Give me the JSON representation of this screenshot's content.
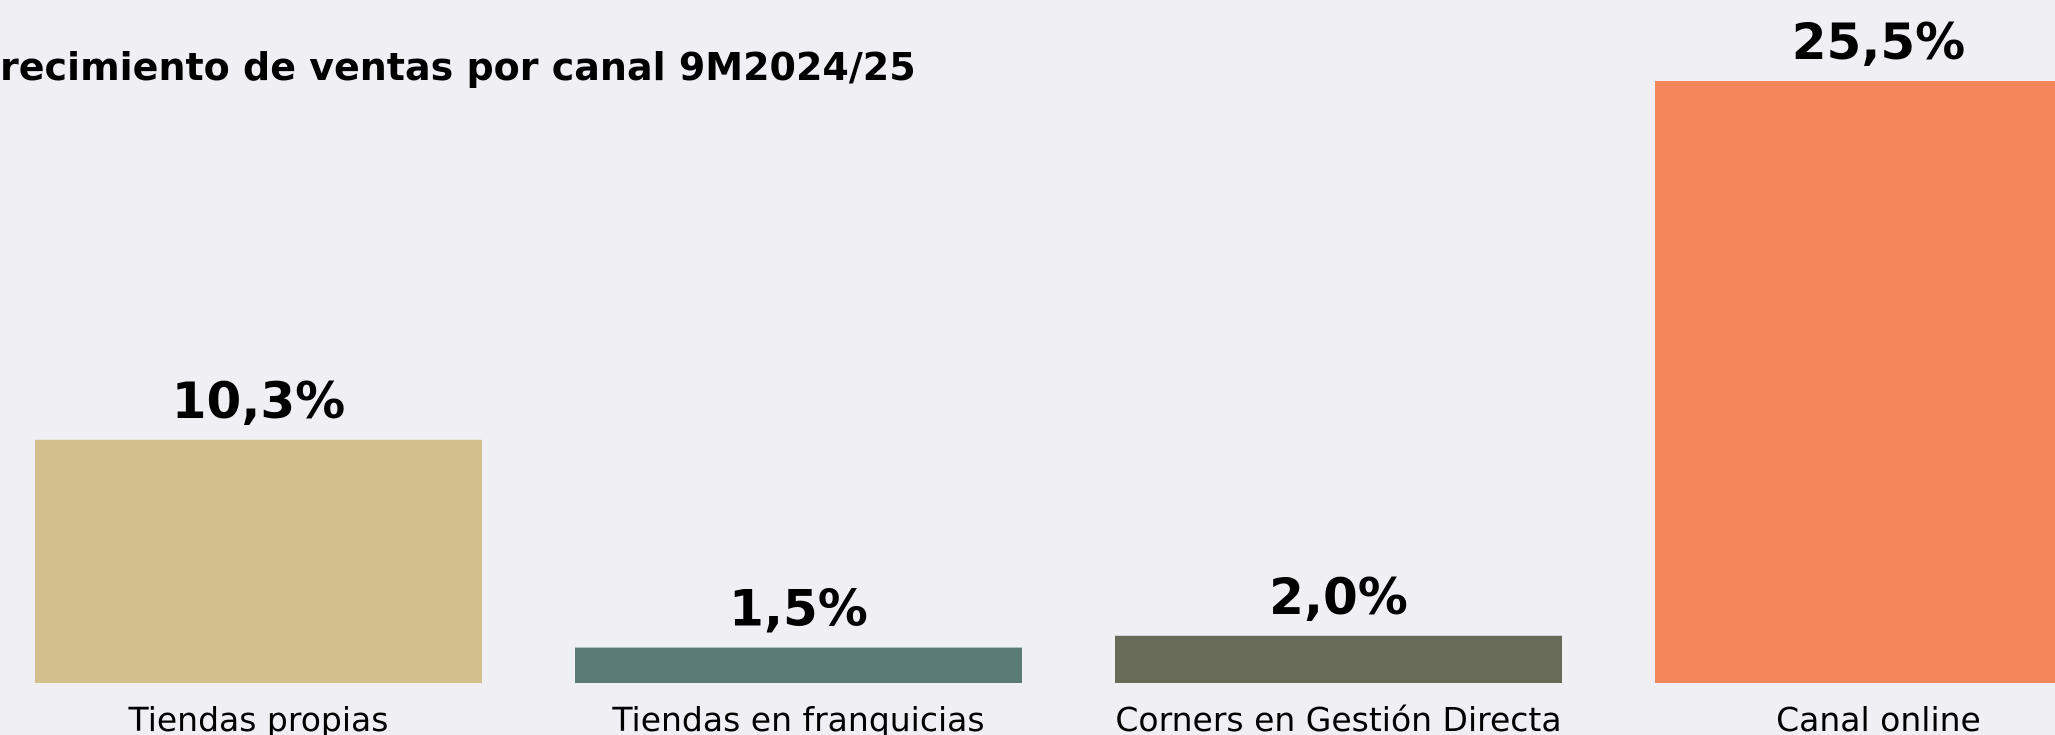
{
  "chart_data": {
    "type": "bar",
    "title": "recimiento de ventas por canal 9M2024/25",
    "categories": [
      "Tiendas propias",
      "Tiendas en franquicias",
      "Corners en Gestión Directa",
      "Canal online"
    ],
    "values": [
      10.3,
      1.5,
      2.0,
      25.5
    ],
    "value_labels": [
      "10,3%",
      "1,5%",
      "2,0%",
      "25,5%"
    ],
    "colors": [
      "#d3bf8c",
      "#5b7c76",
      "#676b57",
      "#f3865b"
    ]
  }
}
